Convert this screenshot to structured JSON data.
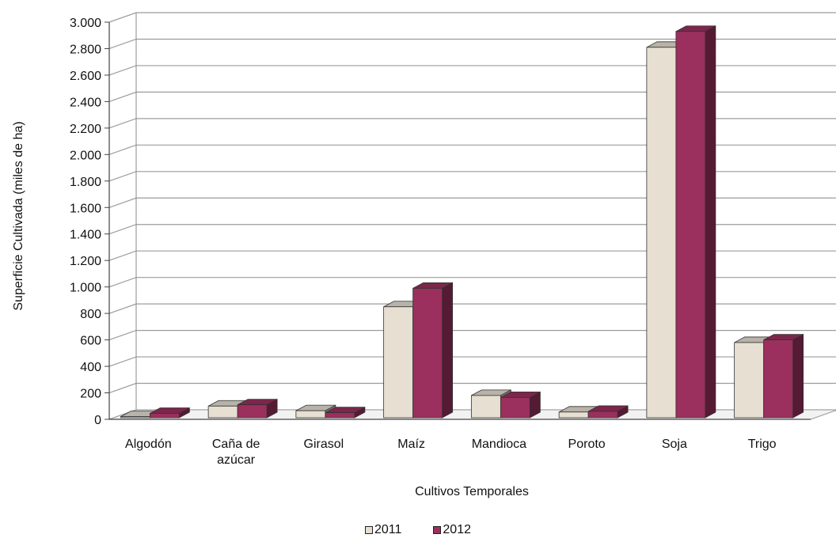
{
  "chart_data": {
    "type": "bar",
    "categories": [
      "Algodón",
      "Caña de azúcar",
      "Girasol",
      "Maíz",
      "Mandioca",
      "Poroto",
      "Soja",
      "Trigo"
    ],
    "category_lines": [
      [
        "Algodón"
      ],
      [
        "Caña de",
        "azúcar"
      ],
      [
        "Girasol"
      ],
      [
        "Maíz"
      ],
      [
        "Mandioca"
      ],
      [
        "Poroto"
      ],
      [
        "Soja"
      ],
      [
        "Trigo"
      ]
    ],
    "series": [
      {
        "name": "2011",
        "color": "#e6dfd2",
        "values": [
          20,
          100,
          65,
          850,
          180,
          55,
          2810,
          580
        ]
      },
      {
        "name": "2012",
        "color": "#9b2f5e",
        "values": [
          45,
          110,
          50,
          990,
          165,
          60,
          2930,
          600
        ]
      }
    ],
    "ylim": [
      0,
      3000
    ],
    "yticks": [
      0,
      200,
      400,
      600,
      800,
      1000,
      1200,
      1400,
      1600,
      1800,
      2000,
      2200,
      2400,
      2600,
      2800,
      3000
    ],
    "ytick_labels": [
      "0",
      "200",
      "400",
      "600",
      "800",
      "1.000",
      "1.200",
      "1.400",
      "1.600",
      "1.800",
      "2.000",
      "2.200",
      "2.400",
      "2.600",
      "2.800",
      "3.000"
    ],
    "xlabel": "Cultivos Temporales",
    "ylabel": "Superficie Cultivada (miles de ha)",
    "grid": true,
    "legend_position": "bottom",
    "style": "3d-clustered-column"
  }
}
